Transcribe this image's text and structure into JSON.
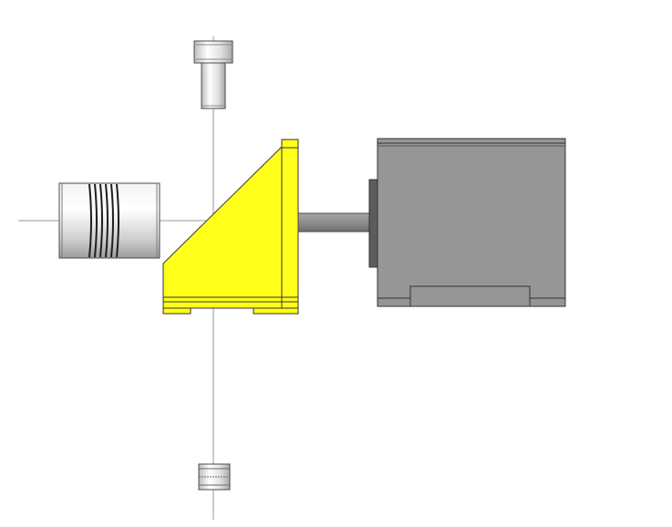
{
  "view": {
    "background": "#ffffff",
    "axis_color": "#9a9a9a"
  },
  "parts": [
    {
      "name": "cap-screw",
      "kind": "fastener",
      "color": "#e2e2e2"
    },
    {
      "name": "flexible-shaft-coupling",
      "kind": "coupling",
      "color": "#d8d8d8"
    },
    {
      "name": "motor-mounting-bracket",
      "kind": "bracket",
      "color": "#ffff1a"
    },
    {
      "name": "motor-shaft",
      "kind": "shaft",
      "color": "#8a8a8a"
    },
    {
      "name": "motor-body",
      "kind": "motor",
      "color": "#969696"
    },
    {
      "name": "nut",
      "kind": "fastener",
      "color": "#cfcfcf"
    }
  ]
}
